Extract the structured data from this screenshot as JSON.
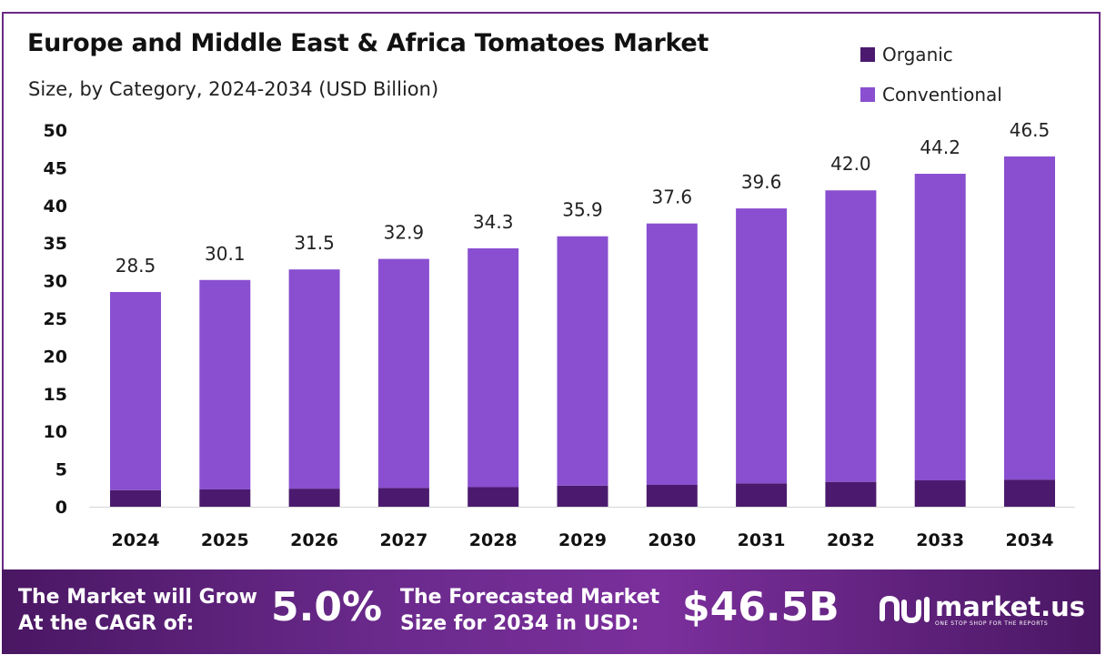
{
  "chart_data": {
    "type": "bar",
    "stacked": true,
    "title": "Europe and Middle East & Africa Tomatoes Market",
    "subtitle": "Size, by Category, 2024-2034 (USD Billion)",
    "categories": [
      "2024",
      "2025",
      "2026",
      "2027",
      "2028",
      "2029",
      "2030",
      "2031",
      "2032",
      "2033",
      "2034"
    ],
    "series": [
      {
        "name": "Organic",
        "color": "#4b1a6e",
        "values": [
          2.2,
          2.3,
          2.4,
          2.5,
          2.6,
          2.8,
          2.9,
          3.1,
          3.3,
          3.5,
          3.6
        ]
      },
      {
        "name": "Conventional",
        "color": "#8a4fd0",
        "values": [
          26.3,
          27.8,
          29.1,
          30.4,
          31.7,
          33.1,
          34.7,
          36.5,
          38.7,
          40.7,
          42.9
        ]
      }
    ],
    "totals": [
      "28.5",
      "30.1",
      "31.5",
      "32.9",
      "34.3",
      "35.9",
      "37.6",
      "39.6",
      "42.0",
      "44.2",
      "46.5"
    ],
    "ylim": [
      0,
      50
    ],
    "yticks": [
      "0",
      "5",
      "10",
      "15",
      "20",
      "25",
      "30",
      "35",
      "40",
      "45",
      "50"
    ],
    "legend_position": "top-right",
    "grid": false
  },
  "banner": {
    "cagr_label_line1": "The Market will Grow",
    "cagr_label_line2": "At the CAGR of:",
    "cagr_value": "5.0%",
    "forecast_label_line1": "The Forecasted Market",
    "forecast_label_line2": "Size for 2034 in USD:",
    "forecast_value": "$46.5B",
    "brand_name": "market.us",
    "brand_tagline": "ONE STOP SHOP FOR THE REPORTS"
  }
}
